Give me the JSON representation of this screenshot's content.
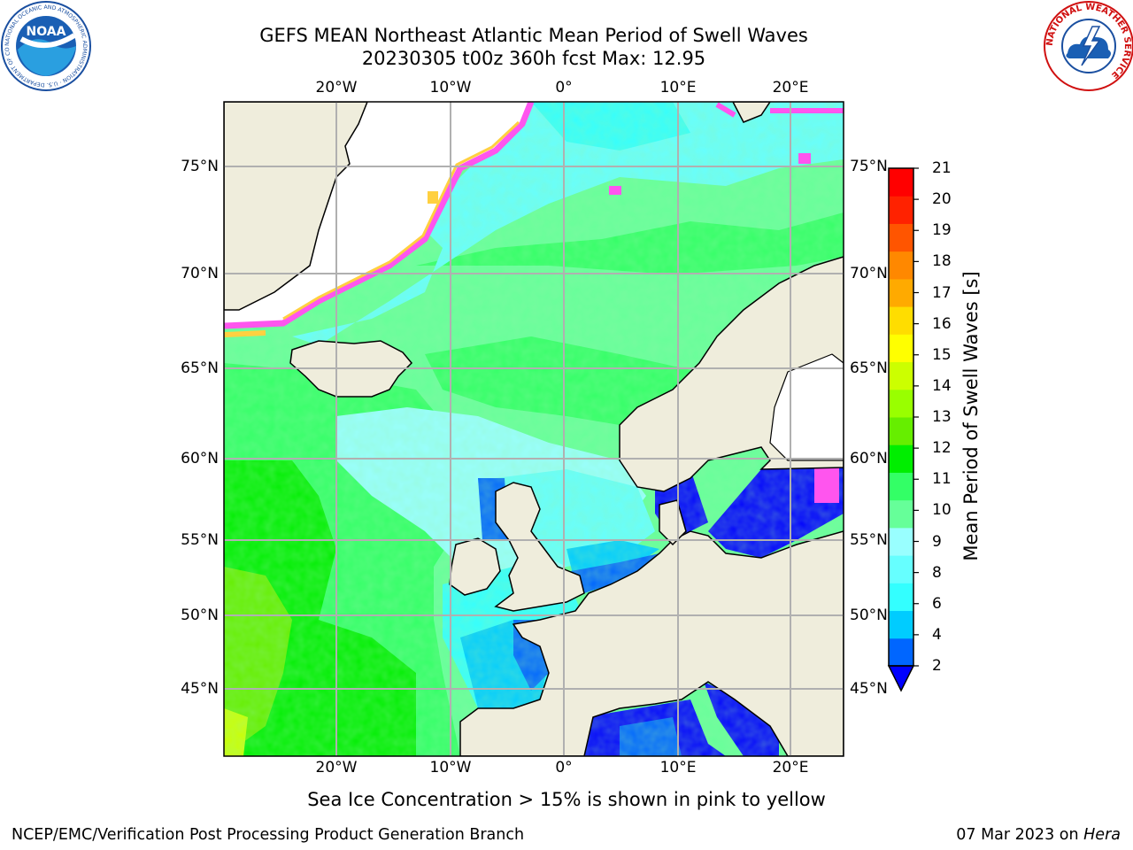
{
  "title_line1": "GEFS MEAN Northeast Atlantic Mean Period of Swell Waves",
  "title_line2": "20230305 t00z 360h fcst   Max: 12.95",
  "lon_ticks": [
    "20°W",
    "10°W",
    "0°",
    "10°E",
    "20°E"
  ],
  "lat_ticks": [
    "75°N",
    "70°N",
    "65°N",
    "60°N",
    "55°N",
    "50°N",
    "45°N"
  ],
  "colorbar": {
    "label": "Mean Period of Swell Waves [s]",
    "ticks": [
      "2",
      "4",
      "6",
      "8",
      "9",
      "10",
      "11",
      "12",
      "13",
      "14",
      "15",
      "16",
      "17",
      "18",
      "19",
      "20",
      "21"
    ],
    "colors": [
      "#0066ff",
      "#00ccff",
      "#33ffff",
      "#66ffff",
      "#99ffff",
      "#66ff99",
      "#33ff66",
      "#00ee00",
      "#66ee00",
      "#99ff00",
      "#ccff00",
      "#ffff00",
      "#ffdd00",
      "#ffaa00",
      "#ff8800",
      "#ff5500",
      "#ff2200",
      "#ff0000"
    ],
    "under_color": "#0000ff"
  },
  "note": "Sea Ice Concentration > 15% is shown in pink to yellow",
  "footer_left": "NCEP/EMC/Verification Post Processing Product Generation Branch",
  "footer_date": "07 Mar 2023 on",
  "footer_machine": "Hera",
  "logos": {
    "noaa_text": "NOAA",
    "noaa_ring": "NATIONAL OCEANIC AND ATMOSPHERIC ADMINISTRATION · U.S. DEPARTMENT OF COMMERCE",
    "nws_ring": "NATIONAL WEATHER SERVICE"
  },
  "colors": {
    "land": "#efeddc",
    "ice_free": "#ffffff",
    "grid": "#b0b0b0",
    "ice_pink": "#ff55ee",
    "ice_yellow": "#ffd040"
  }
}
